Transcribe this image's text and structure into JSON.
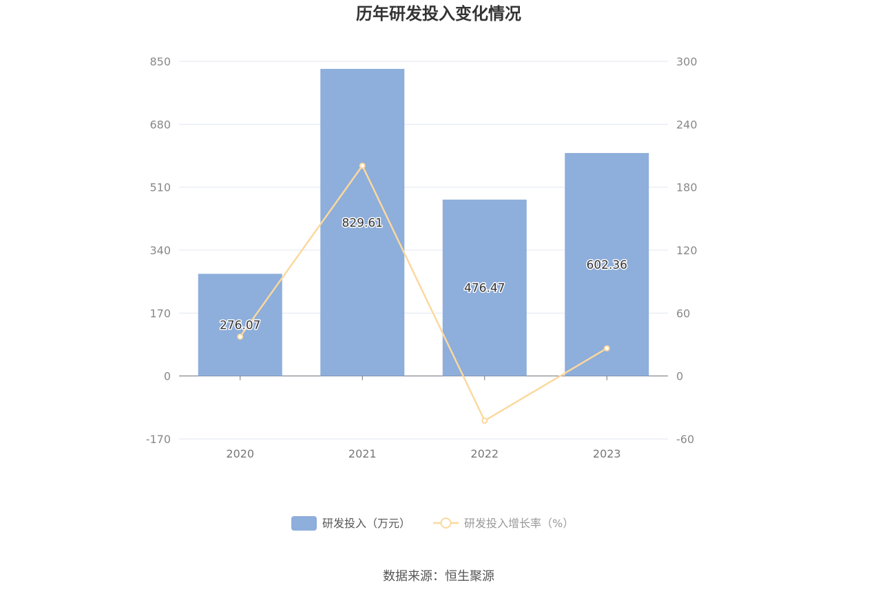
{
  "chart_data": {
    "type": "bar",
    "title": "历年研发投入变化情况",
    "categories": [
      "2020",
      "2021",
      "2022",
      "2023"
    ],
    "series": [
      {
        "name": "研发投入（万元）",
        "type": "bar",
        "axis": "left",
        "color": "#8eaedb",
        "values": [
          276.07,
          829.61,
          476.47,
          602.36
        ],
        "labels": [
          "276.07",
          "829.61",
          "476.47",
          "602.36"
        ]
      },
      {
        "name": "研发投入增长率（%）",
        "type": "line",
        "axis": "right",
        "color": "#fbd89e",
        "values": [
          37.5,
          200.5,
          -42.6,
          26.4
        ]
      }
    ],
    "y_left": {
      "ylim": [
        -170,
        850
      ],
      "ticks": [
        "-170",
        "0",
        "170",
        "340",
        "510",
        "680",
        "850"
      ]
    },
    "y_right": {
      "ylim": [
        -60,
        300
      ],
      "ticks": [
        "-60",
        "0",
        "60",
        "120",
        "180",
        "240",
        "300"
      ]
    },
    "grid": true,
    "legend_position": "bottom-center"
  },
  "source_text": "数据来源：恒生聚源"
}
